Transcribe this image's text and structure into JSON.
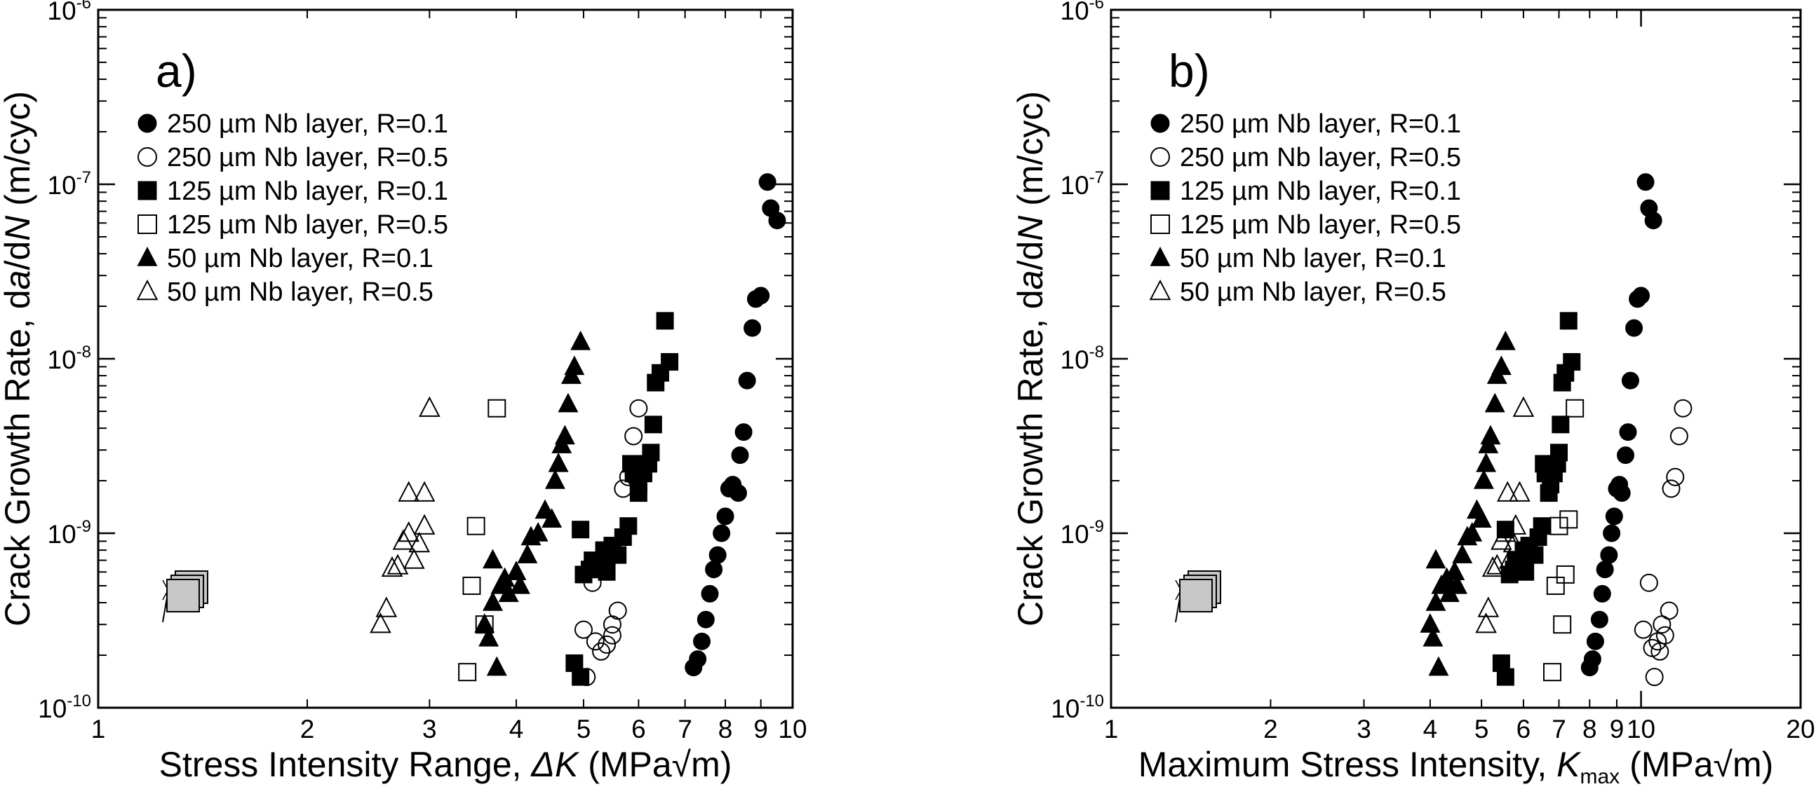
{
  "chart_data": [
    {
      "type": "scatter",
      "panel_label": "a)",
      "xlabel": {
        "main": "Stress Intensity Range, ",
        "symbol": "ΔK",
        "unit": " (MPa√m)"
      },
      "ylabel": {
        "main": "Crack Growth Rate, d",
        "a": "a",
        "slash": "/d",
        "n": "N",
        "unit": " (m/cyc)"
      },
      "xscale": "log",
      "yscale": "log",
      "xlim": [
        1,
        10
      ],
      "ylim": [
        1e-10,
        1e-06
      ],
      "x_ticks": [
        {
          "v": 1,
          "label": "1"
        },
        {
          "v": 2,
          "label": "2"
        },
        {
          "v": 3,
          "label": "3"
        },
        {
          "v": 4,
          "label": "4"
        },
        {
          "v": 5,
          "label": "5"
        },
        {
          "v": 6,
          "label": "6"
        },
        {
          "v": 7,
          "label": "7"
        },
        {
          "v": 8,
          "label": "8"
        },
        {
          "v": 9,
          "label": "9"
        },
        {
          "v": 10,
          "label": "10"
        }
      ],
      "y_ticks": [
        {
          "v": 1e-10,
          "base": "10",
          "exp": "-10"
        },
        {
          "v": 1e-09,
          "base": "10",
          "exp": "-9"
        },
        {
          "v": 1e-08,
          "base": "10",
          "exp": "-8"
        },
        {
          "v": 1e-07,
          "base": "10",
          "exp": "-7"
        },
        {
          "v": 1e-06,
          "base": "10",
          "exp": "-6"
        }
      ],
      "legend_position": "top-left",
      "series": [
        {
          "name": "250 µm Nb layer, R=0.1",
          "marker": "circle",
          "filled": true,
          "points": [
            [
              7.2,
              1.7e-10
            ],
            [
              7.3,
              1.9e-10
            ],
            [
              7.4,
              2.4e-10
            ],
            [
              7.5,
              3.2e-10
            ],
            [
              7.6,
              4.5e-10
            ],
            [
              7.7,
              6.2e-10
            ],
            [
              7.8,
              7.5e-10
            ],
            [
              7.9,
              1e-09
            ],
            [
              8.0,
              1.25e-09
            ],
            [
              8.1,
              1.8e-09
            ],
            [
              8.2,
              1.9e-09
            ],
            [
              8.35,
              1.7e-09
            ],
            [
              8.4,
              2.8e-09
            ],
            [
              8.5,
              3.8e-09
            ],
            [
              8.6,
              7.5e-09
            ],
            [
              8.75,
              1.5e-08
            ],
            [
              8.85,
              2.2e-08
            ],
            [
              9.0,
              2.3e-08
            ],
            [
              9.2,
              1.03e-07
            ],
            [
              9.3,
              7.3e-08
            ],
            [
              9.5,
              6.2e-08
            ]
          ]
        },
        {
          "name": "250 µm Nb layer, R=0.5",
          "marker": "circle",
          "filled": false,
          "points": [
            [
              5.0,
              2.8e-10
            ],
            [
              5.05,
              1.5e-10
            ],
            [
              5.15,
              5.2e-10
            ],
            [
              5.2,
              2.4e-10
            ],
            [
              5.3,
              2.1e-10
            ],
            [
              5.4,
              2.3e-10
            ],
            [
              5.5,
              3e-10
            ],
            [
              5.5,
              2.6e-10
            ],
            [
              5.6,
              3.6e-10
            ],
            [
              5.7,
              1.8e-09
            ],
            [
              5.8,
              2.1e-09
            ],
            [
              5.9,
              3.6e-09
            ],
            [
              6.0,
              5.2e-09
            ]
          ]
        },
        {
          "name": "125 µm Nb layer, R=0.1",
          "marker": "square",
          "filled": true,
          "points": [
            [
              4.85,
              1.8e-10
            ],
            [
              4.95,
              1.5e-10
            ],
            [
              4.95,
              1.05e-09
            ],
            [
              5.0,
              5.8e-10
            ],
            [
              5.1,
              6.2e-10
            ],
            [
              5.15,
              7e-10
            ],
            [
              5.3,
              6.5e-10
            ],
            [
              5.35,
              8e-10
            ],
            [
              5.4,
              6e-10
            ],
            [
              5.5,
              8.5e-10
            ],
            [
              5.6,
              7.5e-10
            ],
            [
              5.7,
              9.5e-10
            ],
            [
              5.8,
              1.1e-09
            ],
            [
              5.85,
              2.5e-09
            ],
            [
              5.9,
              2.2e-09
            ],
            [
              6.0,
              1.7e-09
            ],
            [
              6.0,
              1.9e-09
            ],
            [
              6.1,
              2.2e-09
            ],
            [
              6.2,
              2.5e-09
            ],
            [
              6.25,
              2.9e-09
            ],
            [
              6.3,
              4.2e-09
            ],
            [
              6.35,
              7.3e-09
            ],
            [
              6.45,
              8.3e-09
            ],
            [
              6.55,
              1.65e-08
            ],
            [
              6.65,
              9.6e-09
            ]
          ]
        },
        {
          "name": "125 µm Nb layer, R=0.5",
          "marker": "square",
          "filled": false,
          "points": [
            [
              3.4,
              1.6e-10
            ],
            [
              3.45,
              5e-10
            ],
            [
              3.5,
              1.1e-09
            ],
            [
              3.6,
              3e-10
            ],
            [
              3.75,
              5.2e-09
            ]
          ]
        },
        {
          "name": "50 µm Nb layer, R=0.1",
          "marker": "triangle",
          "filled": true,
          "points": [
            [
              3.6,
              3e-10
            ],
            [
              3.65,
              2.5e-10
            ],
            [
              3.7,
              4e-10
            ],
            [
              3.7,
              7e-10
            ],
            [
              3.75,
              1.7e-10
            ],
            [
              3.8,
              5e-10
            ],
            [
              3.85,
              5.5e-10
            ],
            [
              3.9,
              4.5e-10
            ],
            [
              4.0,
              6e-10
            ],
            [
              4.05,
              5e-10
            ],
            [
              4.15,
              7.5e-10
            ],
            [
              4.2,
              9.5e-10
            ],
            [
              4.3,
              1e-09
            ],
            [
              4.4,
              1.35e-09
            ],
            [
              4.5,
              1.2e-09
            ],
            [
              4.55,
              2e-09
            ],
            [
              4.6,
              2.5e-09
            ],
            [
              4.65,
              3.2e-09
            ],
            [
              4.7,
              3.6e-09
            ],
            [
              4.75,
              5.5e-09
            ],
            [
              4.8,
              8e-09
            ],
            [
              4.85,
              9e-09
            ],
            [
              4.95,
              1.25e-08
            ]
          ]
        },
        {
          "name": "50 µm Nb layer, R=0.5",
          "marker": "triangle",
          "filled": false,
          "points": [
            [
              2.55,
              3e-10
            ],
            [
              2.6,
              3.7e-10
            ],
            [
              2.65,
              6.3e-10
            ],
            [
              2.7,
              6.5e-10
            ],
            [
              2.75,
              9e-10
            ],
            [
              2.8,
              1e-09
            ],
            [
              2.8,
              1.7e-09
            ],
            [
              2.85,
              7e-10
            ],
            [
              2.9,
              8.7e-10
            ],
            [
              2.95,
              1.1e-09
            ],
            [
              2.95,
              1.7e-09
            ],
            [
              3.0,
              5.2e-09
            ]
          ]
        }
      ]
    },
    {
      "type": "scatter",
      "panel_label": "b)",
      "xlabel": {
        "main": "Maximum Stress Intensity, ",
        "symbol": "K",
        "sub": "max",
        "unit": " (MPa√m)"
      },
      "ylabel": {
        "main": "Crack Growth Rate, d",
        "a": "a",
        "slash": "/d",
        "n": "N",
        "unit": " (m/cyc)"
      },
      "xscale": "log",
      "yscale": "log",
      "xlim": [
        1,
        20
      ],
      "ylim": [
        1e-10,
        1e-06
      ],
      "x_ticks": [
        {
          "v": 1,
          "label": "1"
        },
        {
          "v": 2,
          "label": "2"
        },
        {
          "v": 3,
          "label": "3"
        },
        {
          "v": 4,
          "label": "4"
        },
        {
          "v": 5,
          "label": "5"
        },
        {
          "v": 6,
          "label": "6"
        },
        {
          "v": 7,
          "label": "7"
        },
        {
          "v": 8,
          "label": "8"
        },
        {
          "v": 9,
          "label": "9"
        },
        {
          "v": 10,
          "label": "10"
        },
        {
          "v": 20,
          "label": "20"
        }
      ],
      "y_ticks": [
        {
          "v": 1e-10,
          "base": "10",
          "exp": "-10"
        },
        {
          "v": 1e-09,
          "base": "10",
          "exp": "-9"
        },
        {
          "v": 1e-08,
          "base": "10",
          "exp": "-8"
        },
        {
          "v": 1e-07,
          "base": "10",
          "exp": "-7"
        },
        {
          "v": 1e-06,
          "base": "10",
          "exp": "-6"
        }
      ],
      "legend_position": "top-left",
      "series": [
        {
          "name": "250 µm Nb layer, R=0.1",
          "marker": "circle",
          "filled": true,
          "points": [
            [
              8.0,
              1.7e-10
            ],
            [
              8.1,
              1.9e-10
            ],
            [
              8.2,
              2.4e-10
            ],
            [
              8.35,
              3.2e-10
            ],
            [
              8.45,
              4.5e-10
            ],
            [
              8.55,
              6.2e-10
            ],
            [
              8.7,
              7.5e-10
            ],
            [
              8.8,
              1e-09
            ],
            [
              8.9,
              1.25e-09
            ],
            [
              9.0,
              1.8e-09
            ],
            [
              9.1,
              1.9e-09
            ],
            [
              9.2,
              1.7e-09
            ],
            [
              9.35,
              2.8e-09
            ],
            [
              9.45,
              3.8e-09
            ],
            [
              9.55,
              7.5e-09
            ],
            [
              9.7,
              1.5e-08
            ],
            [
              9.85,
              2.2e-08
            ],
            [
              10.0,
              2.3e-08
            ],
            [
              10.2,
              1.03e-07
            ],
            [
              10.35,
              7.3e-08
            ],
            [
              10.55,
              6.2e-08
            ]
          ]
        },
        {
          "name": "250 µm Nb layer, R=0.5",
          "marker": "circle",
          "filled": false,
          "points": [
            [
              10.1,
              2.8e-10
            ],
            [
              10.35,
              5.2e-10
            ],
            [
              10.5,
              2.2e-10
            ],
            [
              10.6,
              1.5e-10
            ],
            [
              10.75,
              2.4e-10
            ],
            [
              10.85,
              2.1e-10
            ],
            [
              10.95,
              3e-10
            ],
            [
              11.1,
              2.6e-10
            ],
            [
              11.3,
              3.6e-10
            ],
            [
              11.4,
              1.8e-09
            ],
            [
              11.6,
              2.1e-09
            ],
            [
              11.8,
              3.6e-09
            ],
            [
              12.0,
              5.2e-09
            ]
          ]
        },
        {
          "name": "125 µm Nb layer, R=0.1",
          "marker": "square",
          "filled": true,
          "points": [
            [
              5.45,
              1.8e-10
            ],
            [
              5.55,
              1.5e-10
            ],
            [
              5.55,
              1.05e-09
            ],
            [
              5.65,
              5.8e-10
            ],
            [
              5.75,
              6.2e-10
            ],
            [
              5.8,
              7e-10
            ],
            [
              5.95,
              6.5e-10
            ],
            [
              6.0,
              8e-10
            ],
            [
              6.05,
              6e-10
            ],
            [
              6.15,
              8.5e-10
            ],
            [
              6.3,
              7.5e-10
            ],
            [
              6.4,
              9.5e-10
            ],
            [
              6.5,
              1.1e-09
            ],
            [
              6.55,
              2.5e-09
            ],
            [
              6.6,
              2.2e-09
            ],
            [
              6.7,
              1.7e-09
            ],
            [
              6.75,
              1.9e-09
            ],
            [
              6.85,
              2.2e-09
            ],
            [
              6.95,
              2.5e-09
            ],
            [
              7.0,
              2.9e-09
            ],
            [
              7.05,
              4.2e-09
            ],
            [
              7.1,
              7.3e-09
            ],
            [
              7.2,
              8.3e-09
            ],
            [
              7.3,
              1.65e-08
            ],
            [
              7.4,
              9.6e-09
            ]
          ]
        },
        {
          "name": "125 µm Nb layer, R=0.5",
          "marker": "square",
          "filled": false,
          "points": [
            [
              6.8,
              1.6e-10
            ],
            [
              6.9,
              5e-10
            ],
            [
              7.0,
              1.1e-09
            ],
            [
              7.1,
              3e-10
            ],
            [
              7.2,
              5.8e-10
            ],
            [
              7.3,
              1.2e-09
            ],
            [
              7.5,
              5.2e-09
            ]
          ]
        },
        {
          "name": "50 µm Nb layer, R=0.1",
          "marker": "triangle",
          "filled": true,
          "points": [
            [
              4.0,
              3e-10
            ],
            [
              4.05,
              2.5e-10
            ],
            [
              4.1,
              4e-10
            ],
            [
              4.1,
              7e-10
            ],
            [
              4.15,
              1.7e-10
            ],
            [
              4.2,
              5e-10
            ],
            [
              4.3,
              5.5e-10
            ],
            [
              4.35,
              4.5e-10
            ],
            [
              4.45,
              6e-10
            ],
            [
              4.5,
              5e-10
            ],
            [
              4.6,
              7.5e-10
            ],
            [
              4.7,
              9.5e-10
            ],
            [
              4.8,
              1e-09
            ],
            [
              4.9,
              1.35e-09
            ],
            [
              5.0,
              1.2e-09
            ],
            [
              5.05,
              2e-09
            ],
            [
              5.1,
              2.5e-09
            ],
            [
              5.15,
              3.2e-09
            ],
            [
              5.2,
              3.6e-09
            ],
            [
              5.3,
              5.5e-09
            ],
            [
              5.35,
              8e-09
            ],
            [
              5.45,
              9e-09
            ],
            [
              5.55,
              1.25e-08
            ]
          ]
        },
        {
          "name": "50 µm Nb layer, R=0.5",
          "marker": "triangle",
          "filled": false,
          "points": [
            [
              5.1,
              3e-10
            ],
            [
              5.15,
              3.7e-10
            ],
            [
              5.25,
              6.3e-10
            ],
            [
              5.35,
              6.5e-10
            ],
            [
              5.45,
              9e-10
            ],
            [
              5.55,
              1e-09
            ],
            [
              5.6,
              1.7e-09
            ],
            [
              5.65,
              7e-10
            ],
            [
              5.75,
              8.7e-10
            ],
            [
              5.8,
              1.1e-09
            ],
            [
              5.9,
              1.7e-09
            ],
            [
              6.0,
              5.2e-09
            ]
          ]
        }
      ]
    }
  ]
}
